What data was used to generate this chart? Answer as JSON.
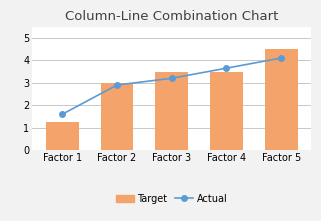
{
  "title": "Column-Line Combination Chart",
  "categories": [
    "Factor 1",
    "Factor 2",
    "Factor 3",
    "Factor 4",
    "Factor 5"
  ],
  "bar_values": [
    1.25,
    3.0,
    3.5,
    3.5,
    4.5
  ],
  "line_values": [
    1.6,
    2.9,
    3.2,
    3.65,
    4.1
  ],
  "bar_color": "#F4A46A",
  "line_color": "#5B9BD5",
  "marker_color": "#5B9BD5",
  "background_color": "#F2F2F2",
  "plot_bg_color": "#FFFFFF",
  "ylim": [
    0,
    5.5
  ],
  "yticks": [
    0,
    1,
    2,
    3,
    4,
    5
  ],
  "legend_target": "Target",
  "legend_actual": "Actual",
  "title_fontsize": 9.5,
  "tick_fontsize": 7,
  "legend_fontsize": 7,
  "grid_color": "#C8C8C8"
}
